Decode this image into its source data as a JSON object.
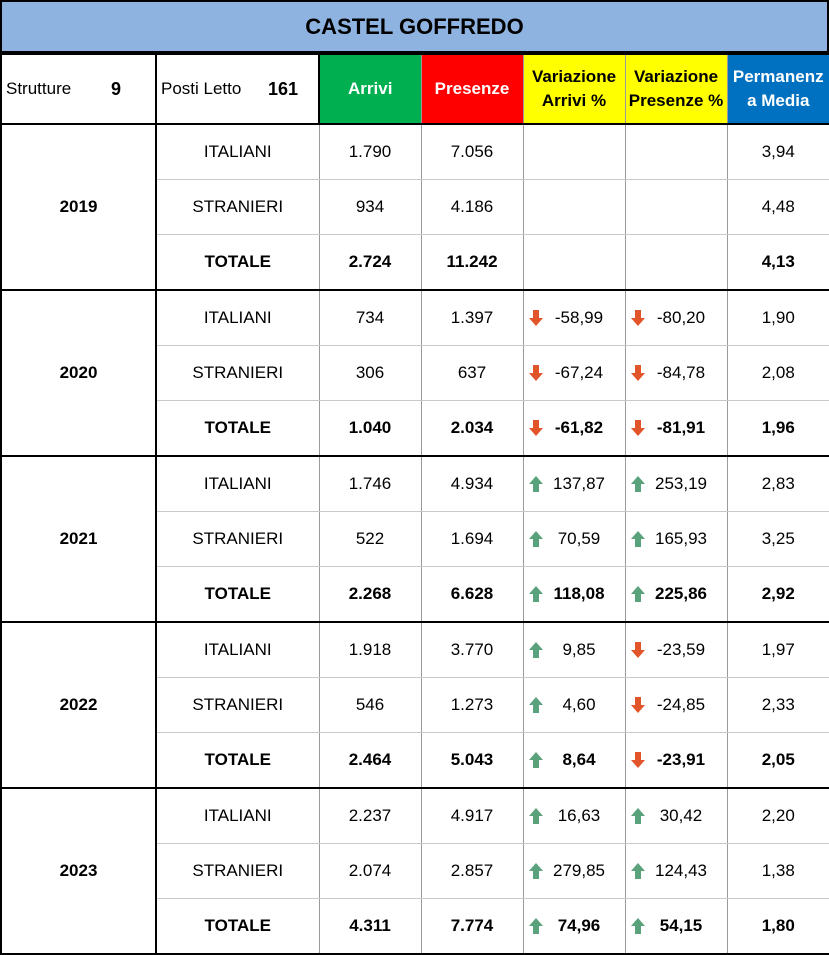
{
  "title": "CASTEL GOFFREDO",
  "header": {
    "strutture_label": "Strutture",
    "strutture_value": "9",
    "posti_label": "Posti Letto",
    "posti_value": "161",
    "columns": {
      "arrivi": "Arrivi",
      "presenze": "Presenze",
      "var_arrivi_1": "Variazione",
      "var_arrivi_2": "Arrivi %",
      "var_presenze_1": "Variazione",
      "var_presenze_2": "Presenze %",
      "perm_1": "Permanenz",
      "perm_2": "a Media"
    }
  },
  "colors": {
    "title_bg": "#8fb3e0",
    "arrivi_bg": "#00b050",
    "presenze_bg": "#ff0000",
    "variazione_bg": "#ffff00",
    "permanenza_bg": "#0070c0",
    "arrow_up": "#5aa27c",
    "arrow_down": "#e2542a"
  },
  "years": [
    {
      "year": "2019",
      "rows": [
        {
          "label": "ITALIANI",
          "arrivi": "1.790",
          "presenze": "7.056",
          "var_arrivi": "",
          "var_arrivi_dir": "",
          "var_presenze": "",
          "var_presenze_dir": "",
          "permanenza": "3,94"
        },
        {
          "label": "STRANIERI",
          "arrivi": "934",
          "presenze": "4.186",
          "var_arrivi": "",
          "var_arrivi_dir": "",
          "var_presenze": "",
          "var_presenze_dir": "",
          "permanenza": "4,48"
        },
        {
          "label": "TOTALE",
          "arrivi": "2.724",
          "presenze": "11.242",
          "var_arrivi": "",
          "var_arrivi_dir": "",
          "var_presenze": "",
          "var_presenze_dir": "",
          "permanenza": "4,13"
        }
      ]
    },
    {
      "year": "2020",
      "rows": [
        {
          "label": "ITALIANI",
          "arrivi": "734",
          "presenze": "1.397",
          "var_arrivi": "-58,99",
          "var_arrivi_dir": "down",
          "var_presenze": "-80,20",
          "var_presenze_dir": "down",
          "permanenza": "1,90"
        },
        {
          "label": "STRANIERI",
          "arrivi": "306",
          "presenze": "637",
          "var_arrivi": "-67,24",
          "var_arrivi_dir": "down",
          "var_presenze": "-84,78",
          "var_presenze_dir": "down",
          "permanenza": "2,08"
        },
        {
          "label": "TOTALE",
          "arrivi": "1.040",
          "presenze": "2.034",
          "var_arrivi": "-61,82",
          "var_arrivi_dir": "down",
          "var_presenze": "-81,91",
          "var_presenze_dir": "down",
          "permanenza": "1,96"
        }
      ]
    },
    {
      "year": "2021",
      "rows": [
        {
          "label": "ITALIANI",
          "arrivi": "1.746",
          "presenze": "4.934",
          "var_arrivi": "137,87",
          "var_arrivi_dir": "up",
          "var_presenze": "253,19",
          "var_presenze_dir": "up",
          "permanenza": "2,83"
        },
        {
          "label": "STRANIERI",
          "arrivi": "522",
          "presenze": "1.694",
          "var_arrivi": "70,59",
          "var_arrivi_dir": "up",
          "var_presenze": "165,93",
          "var_presenze_dir": "up",
          "permanenza": "3,25"
        },
        {
          "label": "TOTALE",
          "arrivi": "2.268",
          "presenze": "6.628",
          "var_arrivi": "118,08",
          "var_arrivi_dir": "up",
          "var_presenze": "225,86",
          "var_presenze_dir": "up",
          "permanenza": "2,92"
        }
      ]
    },
    {
      "year": "2022",
      "rows": [
        {
          "label": "ITALIANI",
          "arrivi": "1.918",
          "presenze": "3.770",
          "var_arrivi": "9,85",
          "var_arrivi_dir": "up",
          "var_presenze": "-23,59",
          "var_presenze_dir": "down",
          "permanenza": "1,97"
        },
        {
          "label": "STRANIERI",
          "arrivi": "546",
          "presenze": "1.273",
          "var_arrivi": "4,60",
          "var_arrivi_dir": "up",
          "var_presenze": "-24,85",
          "var_presenze_dir": "down",
          "permanenza": "2,33"
        },
        {
          "label": "TOTALE",
          "arrivi": "2.464",
          "presenze": "5.043",
          "var_arrivi": "8,64",
          "var_arrivi_dir": "up",
          "var_presenze": "-23,91",
          "var_presenze_dir": "down",
          "permanenza": "2,05"
        }
      ]
    },
    {
      "year": "2023",
      "rows": [
        {
          "label": "ITALIANI",
          "arrivi": "2.237",
          "presenze": "4.917",
          "var_arrivi": "16,63",
          "var_arrivi_dir": "up",
          "var_presenze": "30,42",
          "var_presenze_dir": "up",
          "permanenza": "2,20"
        },
        {
          "label": "STRANIERI",
          "arrivi": "2.074",
          "presenze": "2.857",
          "var_arrivi": "279,85",
          "var_arrivi_dir": "up",
          "var_presenze": "124,43",
          "var_presenze_dir": "up",
          "permanenza": "1,38"
        },
        {
          "label": "TOTALE",
          "arrivi": "4.311",
          "presenze": "7.774",
          "var_arrivi": "74,96",
          "var_arrivi_dir": "up",
          "var_presenze": "54,15",
          "var_presenze_dir": "up",
          "permanenza": "1,80"
        }
      ]
    }
  ]
}
